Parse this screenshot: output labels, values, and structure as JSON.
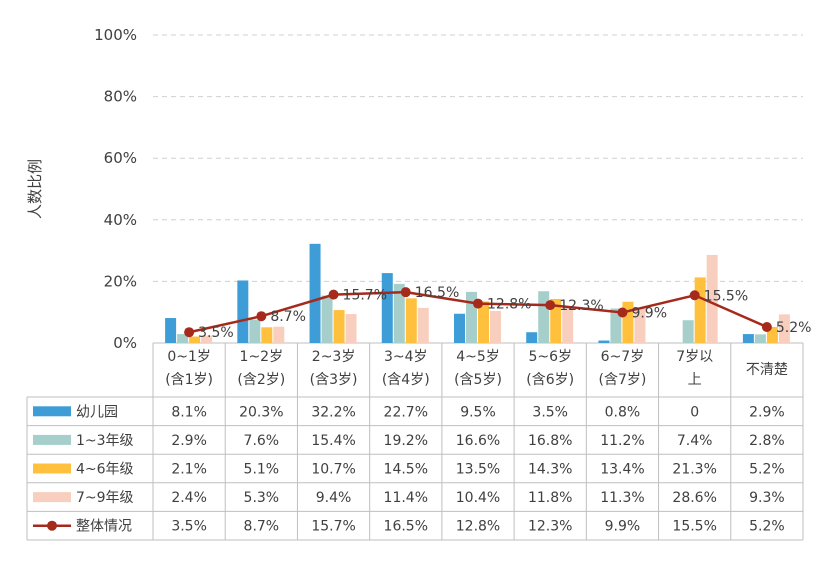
{
  "chart_data": {
    "type": "bar",
    "title": "",
    "ylabel": "人数比例",
    "ylim": [
      0,
      100
    ],
    "yticks": [
      "0%",
      "20%",
      "40%",
      "60%",
      "80%",
      "100%"
    ],
    "grid": true,
    "legend": "data-table-left",
    "categories": [
      [
        "0~1岁",
        "(含1岁)"
      ],
      [
        "1~2岁",
        "(含2岁)"
      ],
      [
        "2~3岁",
        "(含3岁)"
      ],
      [
        "3~4岁",
        "(含4岁)"
      ],
      [
        "4~5岁",
        "(含5岁)"
      ],
      [
        "5~6岁",
        "(含6岁)"
      ],
      [
        "6~7岁",
        "(含7岁)"
      ],
      [
        "7岁以",
        "上"
      ],
      [
        "不清楚"
      ]
    ],
    "series": [
      {
        "name": "幼儿园",
        "type": "bar",
        "color": "#3E9DD6",
        "values": [
          8.1,
          20.3,
          32.2,
          22.7,
          9.5,
          3.5,
          0.8,
          0,
          2.9
        ],
        "labels": [
          "8.1%",
          "20.3%",
          "32.2%",
          "22.7%",
          "9.5%",
          "3.5%",
          "0.8%",
          "0",
          "2.9%"
        ]
      },
      {
        "name": "1~3年级",
        "type": "bar",
        "color": "#A6CFCB",
        "values": [
          2.9,
          7.6,
          15.4,
          19.2,
          16.6,
          16.8,
          11.2,
          7.4,
          2.8
        ],
        "labels": [
          "2.9%",
          "7.6%",
          "15.4%",
          "19.2%",
          "16.6%",
          "16.8%",
          "11.2%",
          "7.4%",
          "2.8%"
        ]
      },
      {
        "name": "4~6年级",
        "type": "bar",
        "color": "#FFC13D",
        "values": [
          2.1,
          5.1,
          10.7,
          14.5,
          13.5,
          14.3,
          13.4,
          21.3,
          5.2
        ],
        "labels": [
          "2.1%",
          "5.1%",
          "10.7%",
          "14.5%",
          "13.5%",
          "14.3%",
          "13.4%",
          "21.3%",
          "5.2%"
        ]
      },
      {
        "name": "7~9年级",
        "type": "bar",
        "color": "#F8CFBF",
        "values": [
          2.4,
          5.3,
          9.4,
          11.4,
          10.4,
          11.8,
          11.3,
          28.6,
          9.3
        ],
        "labels": [
          "2.4%",
          "5.3%",
          "9.4%",
          "11.4%",
          "10.4%",
          "11.8%",
          "11.3%",
          "28.6%",
          "9.3%"
        ]
      },
      {
        "name": "整体情况",
        "type": "line",
        "color": "#A52A1C",
        "values": [
          3.5,
          8.7,
          15.7,
          16.5,
          12.8,
          12.3,
          9.9,
          15.5,
          5.2
        ],
        "labels": [
          "3.5%",
          "8.7%",
          "15.7%",
          "16.5%",
          "12.8%",
          "12.3%",
          "9.9%",
          "15.5%",
          "5.2%"
        ]
      }
    ]
  }
}
